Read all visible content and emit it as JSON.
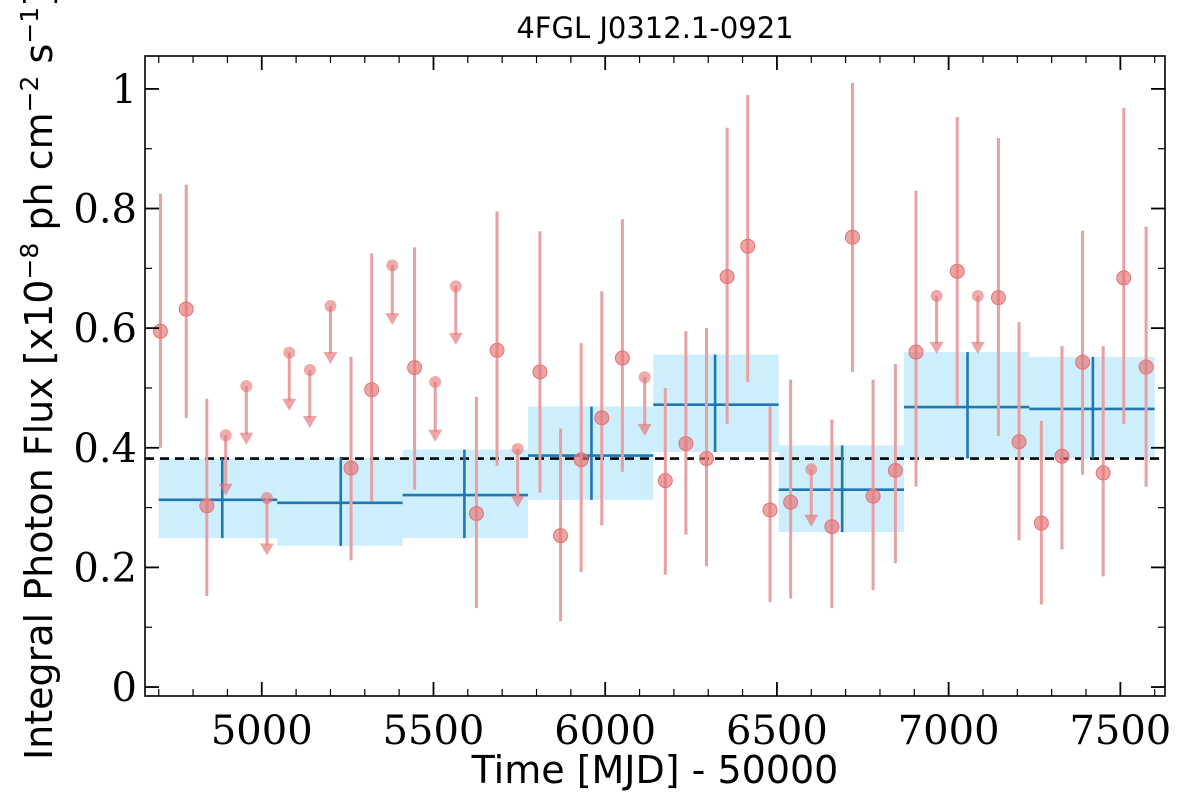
{
  "chart_data": {
    "type": "scatter",
    "title": "4FGL J0312.1-0921",
    "xlabel": "Time [MJD] - 50000",
    "ylabel": "Integral Photon Flux [x10",
    "ylabel_exp1": "−8",
    "ylabel_mid": " ph cm",
    "ylabel_exp2": "−2",
    "ylabel_mid2": " s",
    "ylabel_exp3": "−1",
    "ylabel_end": "]",
    "xlim": [
      4660,
      7630
    ],
    "ylim": [
      -0.015,
      1.055
    ],
    "xticks": [
      5000,
      5500,
      6000,
      6500,
      7000,
      7500
    ],
    "xtick_labels": [
      "5000",
      "5500",
      "6000",
      "6500",
      "7000",
      "7500"
    ],
    "yticks": [
      0,
      0.2,
      0.4,
      0.6,
      0.8,
      1
    ],
    "ytick_labels": [
      "0",
      "0.2",
      "0.4",
      "0.6",
      "0.8",
      "1"
    ],
    "average_flux": 0.382,
    "colors": {
      "points": "#e57373",
      "errorbars": "#e8a0a0",
      "bins_fill": "#cdeefc",
      "bins_line": "#1f77b4",
      "average_line": "#000000"
    },
    "points": [
      {
        "x": 4705,
        "y": 0.595,
        "lo": 0.4,
        "hi": 0.825
      },
      {
        "x": 4780,
        "y": 0.632,
        "lo": 0.45,
        "hi": 0.84
      },
      {
        "x": 4840,
        "y": 0.303,
        "lo": 0.152,
        "hi": 0.482
      },
      {
        "x": 5260,
        "y": 0.366,
        "lo": 0.212,
        "hi": 0.552
      },
      {
        "x": 5320,
        "y": 0.497,
        "lo": 0.31,
        "hi": 0.725
      },
      {
        "x": 5445,
        "y": 0.534,
        "lo": 0.33,
        "hi": 0.735
      },
      {
        "x": 5625,
        "y": 0.29,
        "lo": 0.132,
        "hi": 0.485
      },
      {
        "x": 5685,
        "y": 0.563,
        "lo": 0.37,
        "hi": 0.795
      },
      {
        "x": 5810,
        "y": 0.527,
        "lo": 0.325,
        "hi": 0.762
      },
      {
        "x": 5870,
        "y": 0.253,
        "lo": 0.11,
        "hi": 0.432
      },
      {
        "x": 5930,
        "y": 0.38,
        "lo": 0.192,
        "hi": 0.575
      },
      {
        "x": 5990,
        "y": 0.45,
        "lo": 0.27,
        "hi": 0.662
      },
      {
        "x": 6050,
        "y": 0.55,
        "lo": 0.36,
        "hi": 0.782
      },
      {
        "x": 6175,
        "y": 0.345,
        "lo": 0.188,
        "hi": 0.5
      },
      {
        "x": 6235,
        "y": 0.407,
        "lo": 0.255,
        "hi": 0.595
      },
      {
        "x": 6295,
        "y": 0.382,
        "lo": 0.202,
        "hi": 0.6
      },
      {
        "x": 6355,
        "y": 0.686,
        "lo": 0.44,
        "hi": 0.935
      },
      {
        "x": 6415,
        "y": 0.737,
        "lo": 0.51,
        "hi": 0.99
      },
      {
        "x": 6480,
        "y": 0.296,
        "lo": 0.142,
        "hi": 0.47
      },
      {
        "x": 6540,
        "y": 0.309,
        "lo": 0.148,
        "hi": 0.514
      },
      {
        "x": 6660,
        "y": 0.268,
        "lo": 0.132,
        "hi": 0.447
      },
      {
        "x": 6720,
        "y": 0.752,
        "lo": 0.527,
        "hi": 1.01
      },
      {
        "x": 6780,
        "y": 0.319,
        "lo": 0.162,
        "hi": 0.514
      },
      {
        "x": 6845,
        "y": 0.362,
        "lo": 0.207,
        "hi": 0.54
      },
      {
        "x": 6905,
        "y": 0.56,
        "lo": 0.335,
        "hi": 0.83
      },
      {
        "x": 7025,
        "y": 0.695,
        "lo": 0.47,
        "hi": 0.953
      },
      {
        "x": 7145,
        "y": 0.651,
        "lo": 0.42,
        "hi": 0.918
      },
      {
        "x": 7205,
        "y": 0.41,
        "lo": 0.245,
        "hi": 0.61
      },
      {
        "x": 7270,
        "y": 0.274,
        "lo": 0.138,
        "hi": 0.445
      },
      {
        "x": 7330,
        "y": 0.386,
        "lo": 0.23,
        "hi": 0.57
      },
      {
        "x": 7390,
        "y": 0.543,
        "lo": 0.355,
        "hi": 0.763
      },
      {
        "x": 7450,
        "y": 0.358,
        "lo": 0.185,
        "hi": 0.57
      },
      {
        "x": 7510,
        "y": 0.684,
        "lo": 0.44,
        "hi": 0.968
      },
      {
        "x": 7575,
        "y": 0.535,
        "lo": 0.335,
        "hi": 0.77
      }
    ],
    "upper_limits": [
      {
        "x": 4895,
        "y": 0.421,
        "head": 0.32
      },
      {
        "x": 4955,
        "y": 0.503,
        "head": 0.405
      },
      {
        "x": 5015,
        "y": 0.316,
        "head": 0.22
      },
      {
        "x": 5080,
        "y": 0.559,
        "head": 0.462
      },
      {
        "x": 5140,
        "y": 0.53,
        "head": 0.433
      },
      {
        "x": 5200,
        "y": 0.637,
        "head": 0.54
      },
      {
        "x": 5380,
        "y": 0.705,
        "head": 0.605
      },
      {
        "x": 5505,
        "y": 0.51,
        "head": 0.41
      },
      {
        "x": 5565,
        "y": 0.67,
        "head": 0.572
      },
      {
        "x": 5745,
        "y": 0.398,
        "head": 0.3
      },
      {
        "x": 6115,
        "y": 0.518,
        "head": 0.42
      },
      {
        "x": 6600,
        "y": 0.364,
        "head": 0.268
      },
      {
        "x": 6965,
        "y": 0.654,
        "head": 0.557
      },
      {
        "x": 7085,
        "y": 0.654,
        "head": 0.557
      }
    ],
    "bins": [
      {
        "x0": 4700,
        "x1": 5045,
        "xc": 4885,
        "y": 0.313,
        "lo": 0.249,
        "hi": 0.382
      },
      {
        "x0": 5045,
        "x1": 5410,
        "xc": 5230,
        "y": 0.308,
        "lo": 0.236,
        "hi": 0.383
      },
      {
        "x0": 5410,
        "x1": 5775,
        "xc": 5590,
        "y": 0.321,
        "lo": 0.249,
        "hi": 0.397
      },
      {
        "x0": 5775,
        "x1": 6140,
        "xc": 5960,
        "y": 0.387,
        "lo": 0.313,
        "hi": 0.469
      },
      {
        "x0": 6140,
        "x1": 6505,
        "xc": 6320,
        "y": 0.472,
        "lo": 0.393,
        "hi": 0.556
      },
      {
        "x0": 6505,
        "x1": 6870,
        "xc": 6690,
        "y": 0.33,
        "lo": 0.259,
        "hi": 0.404
      },
      {
        "x0": 6870,
        "x1": 7235,
        "xc": 7055,
        "y": 0.468,
        "lo": 0.382,
        "hi": 0.56
      },
      {
        "x0": 7235,
        "x1": 7600,
        "xc": 7420,
        "y": 0.465,
        "lo": 0.382,
        "hi": 0.552
      }
    ]
  }
}
